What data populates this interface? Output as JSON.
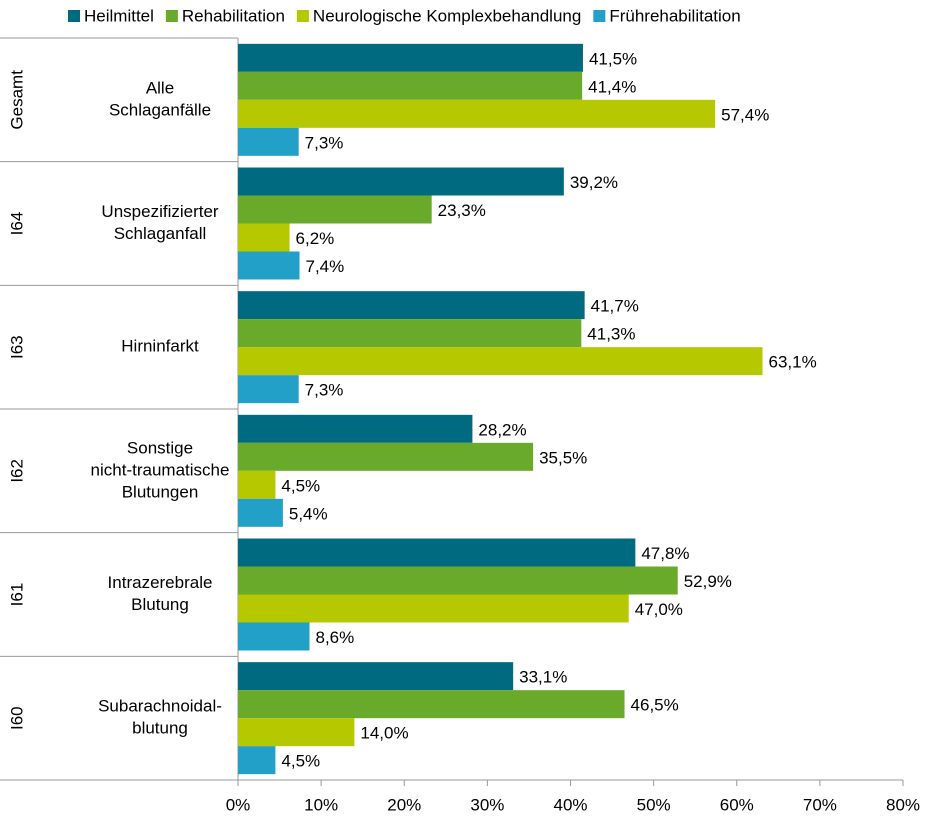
{
  "chart_data": {
    "type": "bar",
    "orientation": "horizontal",
    "groups": [
      "Gesamt",
      "I64",
      "I63",
      "I62",
      "I61",
      "I60"
    ],
    "categories": [
      [
        "Alle",
        "Schlaganfälle"
      ],
      [
        "Unspezifizierter",
        "Schlaganfall"
      ],
      [
        "Hirninfarkt"
      ],
      [
        "Sonstige",
        "nicht-traumatische",
        "Blutungen"
      ],
      [
        "Intrazerebrale",
        "Blutung"
      ],
      [
        "Subarachnoidal-",
        "blutung"
      ]
    ],
    "series": [
      {
        "name": "Heilmittel",
        "color": "#006a80",
        "values": [
          41.5,
          39.2,
          41.7,
          28.2,
          47.8,
          33.1
        ],
        "value_labels": [
          "41,5%",
          "39,2%",
          "41,7%",
          "28,2%",
          "47,8%",
          "33,1%"
        ]
      },
      {
        "name": "Rehabilitation",
        "color": "#6aaa2a",
        "values": [
          41.4,
          23.3,
          41.3,
          35.5,
          52.9,
          46.5
        ],
        "value_labels": [
          "41,4%",
          "23,3%",
          "41,3%",
          "35,5%",
          "52,9%",
          "46,5%"
        ]
      },
      {
        "name": "Neurologische Komplexbehandlung",
        "color": "#b5c800",
        "values": [
          57.4,
          6.2,
          63.1,
          4.5,
          47.0,
          14.0
        ],
        "value_labels": [
          "57,4%",
          "6,2%",
          "63,1%",
          "4,5%",
          "47,0%",
          "14,0%"
        ]
      },
      {
        "name": "Frührehabilitation",
        "color": "#22a0c8",
        "values": [
          7.3,
          7.4,
          7.3,
          5.4,
          8.6,
          4.5
        ],
        "value_labels": [
          "7,3%",
          "7,4%",
          "7,3%",
          "5,4%",
          "8,6%",
          "4,5%"
        ]
      }
    ],
    "xlim": [
      0,
      80
    ],
    "xticks": [
      {
        "value": 0,
        "label": "0%"
      },
      {
        "value": 10,
        "label": "10%"
      },
      {
        "value": 20,
        "label": "20%"
      },
      {
        "value": 30,
        "label": "30%"
      },
      {
        "value": 40,
        "label": "40%"
      },
      {
        "value": 50,
        "label": "50%"
      },
      {
        "value": 60,
        "label": "60%"
      },
      {
        "value": 70,
        "label": "70%"
      },
      {
        "value": 80,
        "label": "80%"
      }
    ],
    "legend": "top"
  }
}
